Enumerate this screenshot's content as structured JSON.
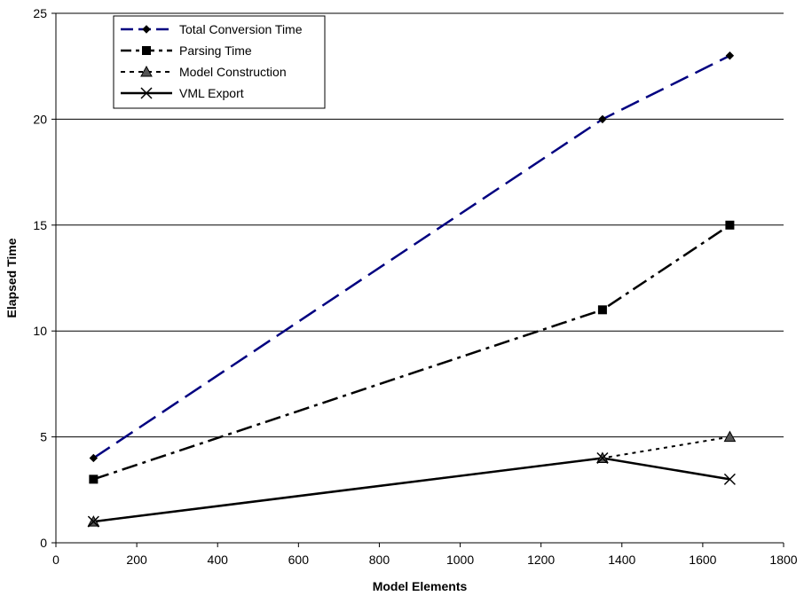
{
  "chart_data": {
    "type": "line",
    "title": "",
    "xlabel": "Model Elements",
    "ylabel": "Elapsed Time",
    "xlim": [
      0,
      1800
    ],
    "ylim": [
      0,
      25
    ],
    "x_ticks": [
      "0",
      "200",
      "400",
      "600",
      "800",
      "1000",
      "1200",
      "1400",
      "1600",
      "1800"
    ],
    "y_ticks": [
      "0",
      "5",
      "10",
      "15",
      "20",
      "25"
    ],
    "grid": "horizontal",
    "legend_position": "top-left",
    "series": [
      {
        "name": "Total Conversion Time",
        "color": "#000080",
        "marker": "diamond",
        "line_style": "long-dash",
        "points": [
          [
            93,
            4
          ],
          [
            1352,
            20
          ],
          [
            1667,
            23
          ]
        ]
      },
      {
        "name": "Parsing Time",
        "color": "#000000",
        "marker": "square",
        "line_style": "dash-dot",
        "points": [
          [
            93,
            3
          ],
          [
            1352,
            11
          ],
          [
            1667,
            15
          ]
        ]
      },
      {
        "name": "Model Construction",
        "color": "#000000",
        "marker": "triangle",
        "line_style": "dotted",
        "points": [
          [
            93,
            1
          ],
          [
            1352,
            4
          ],
          [
            1667,
            5
          ]
        ]
      },
      {
        "name": "VML Export",
        "color": "#000000",
        "marker": "x",
        "line_style": "solid",
        "points": [
          [
            93,
            1
          ],
          [
            1352,
            4
          ],
          [
            1667,
            3
          ]
        ]
      }
    ]
  }
}
